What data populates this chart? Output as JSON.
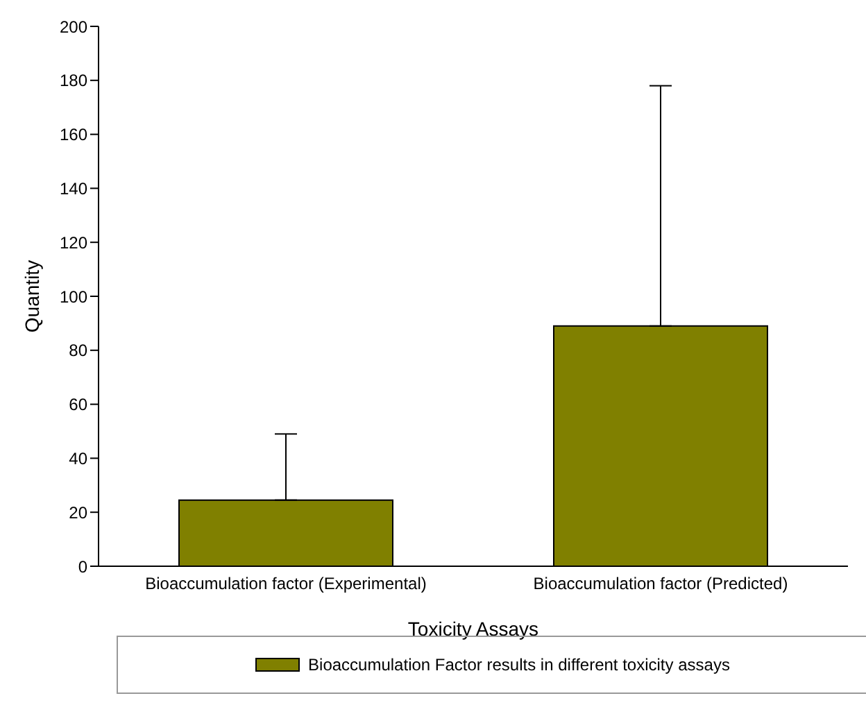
{
  "chart_data": {
    "type": "bar",
    "xlabel": "Toxicity Assays",
    "ylabel": "Quantity",
    "categories": [
      "Bioaccumulation factor (Experimental)",
      "Bioaccumulation factor (Predicted)"
    ],
    "series": [
      {
        "name": "Bioaccumulation Factor results in different toxicity assays",
        "color": "#808000",
        "values": [
          24.5,
          89
        ],
        "errors": [
          [
            24.5,
            49
          ],
          [
            89,
            178
          ]
        ]
      }
    ],
    "ylim": [
      0,
      200
    ],
    "yticks": [
      0,
      20,
      40,
      60,
      80,
      100,
      120,
      140,
      160,
      180,
      200
    ],
    "grid": false,
    "legend": "bottom"
  }
}
